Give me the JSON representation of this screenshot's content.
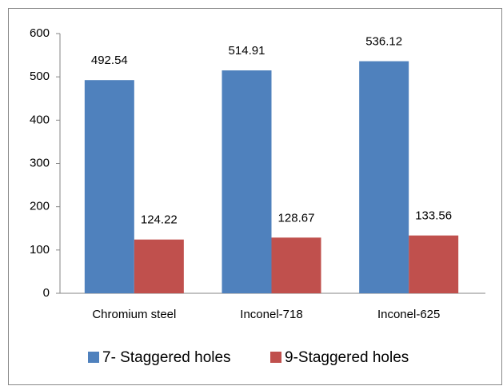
{
  "chart_data": {
    "type": "bar",
    "categories": [
      "Chromium steel",
      "Inconel-718",
      "Inconel-625"
    ],
    "series": [
      {
        "name": "7- Staggered holes",
        "color": "#4f81bd",
        "values": [
          492.54,
          514.91,
          536.12
        ]
      },
      {
        "name": "9-Staggered holes",
        "color": "#c0504d",
        "values": [
          124.22,
          128.67,
          133.56
        ]
      }
    ],
    "ylim": [
      0,
      600
    ],
    "yticks": [
      0,
      100,
      200,
      300,
      400,
      500,
      600
    ],
    "grid": false,
    "legend": "bottom"
  }
}
